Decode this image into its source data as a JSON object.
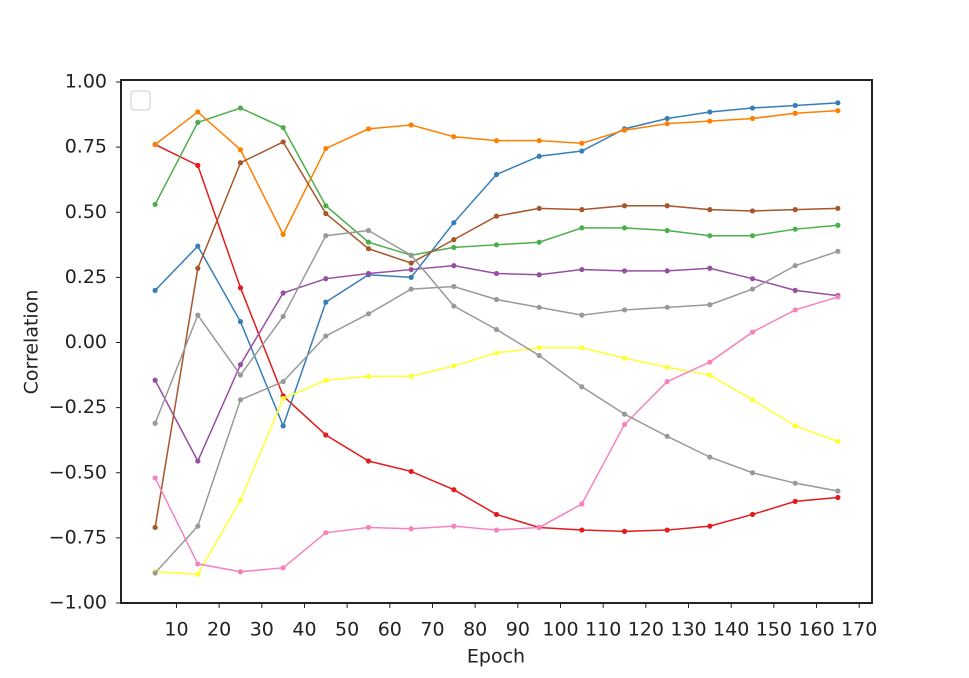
{
  "chart_data": {
    "type": "line",
    "x_label": "Epoch",
    "y_label": "Correlation",
    "x": [
      5,
      15,
      25,
      35,
      45,
      55,
      65,
      75,
      85,
      95,
      105,
      115,
      125,
      135,
      145,
      155,
      165
    ],
    "xlim": [
      -3,
      173
    ],
    "xticks": [
      10,
      20,
      30,
      40,
      50,
      60,
      70,
      80,
      90,
      100,
      110,
      120,
      130,
      140,
      150,
      160,
      170
    ],
    "ylim": [
      -1,
      1
    ],
    "yticks": [
      {
        "value": -1,
        "label": "−1.00"
      },
      {
        "value": -0.75,
        "label": "−0.75"
      },
      {
        "value": -0.5,
        "label": "−0.50"
      },
      {
        "value": -0.25,
        "label": "−0.25"
      },
      {
        "value": 0,
        "label": "0.00"
      },
      {
        "value": 0.25,
        "label": "0.25"
      },
      {
        "value": 0.5,
        "label": "0.50"
      },
      {
        "value": 0.75,
        "label": "0.75"
      },
      {
        "value": 1,
        "label": "1.00"
      }
    ],
    "grid": false,
    "series": [
      {
        "color": "#e41a1c",
        "values": [
          0.76,
          0.68,
          0.21,
          -0.205,
          -0.355,
          -0.455,
          -0.495,
          -0.565,
          -0.66,
          -0.71,
          -0.72,
          -0.725,
          -0.72,
          -0.705,
          -0.66,
          -0.61,
          -0.595
        ]
      },
      {
        "color": "#377eb8",
        "values": [
          0.2,
          0.37,
          0.08,
          -0.32,
          0.155,
          0.26,
          0.25,
          0.46,
          0.645,
          0.715,
          0.735,
          0.82,
          0.86,
          0.885,
          0.9,
          0.91,
          0.92
        ]
      },
      {
        "color": "#4daf4a",
        "values": [
          0.53,
          0.845,
          0.9,
          0.825,
          0.525,
          0.385,
          0.335,
          0.365,
          0.375,
          0.385,
          0.44,
          0.44,
          0.43,
          0.41,
          0.41,
          0.435,
          0.45
        ]
      },
      {
        "color": "#984ea3",
        "values": [
          -0.145,
          -0.455,
          -0.085,
          0.19,
          0.245,
          0.265,
          0.28,
          0.295,
          0.265,
          0.26,
          0.28,
          0.275,
          0.275,
          0.285,
          0.245,
          0.2,
          0.18
        ]
      },
      {
        "color": "#ff7f00",
        "values": [
          0.76,
          0.885,
          0.74,
          0.415,
          0.745,
          0.82,
          0.835,
          0.79,
          0.775,
          0.775,
          0.765,
          0.815,
          0.84,
          0.85,
          0.86,
          0.88,
          0.89
        ]
      },
      {
        "color": "#ffff33",
        "values": [
          -0.88,
          -0.89,
          -0.605,
          -0.215,
          -0.145,
          -0.13,
          -0.13,
          -0.09,
          -0.04,
          -0.02,
          -0.02,
          -0.06,
          -0.095,
          -0.125,
          -0.22,
          -0.32,
          -0.38
        ]
      },
      {
        "color": "#a65628",
        "values": [
          -0.71,
          0.285,
          0.69,
          0.77,
          0.495,
          0.36,
          0.305,
          0.395,
          0.485,
          0.515,
          0.51,
          0.525,
          0.525,
          0.51,
          0.505,
          0.51,
          0.515
        ]
      },
      {
        "color": "#f781bf",
        "values": [
          -0.52,
          -0.85,
          -0.88,
          -0.865,
          -0.73,
          -0.71,
          -0.715,
          -0.705,
          -0.72,
          -0.71,
          -0.62,
          -0.315,
          -0.15,
          -0.075,
          0.04,
          0.125,
          0.175
        ]
      },
      {
        "color": "#999999",
        "values": [
          -0.31,
          0.105,
          -0.125,
          0.1,
          0.41,
          0.43,
          0.335,
          0.14,
          0.05,
          -0.05,
          -0.17,
          -0.275,
          -0.36,
          -0.44,
          -0.5,
          -0.54,
          -0.57
        ]
      },
      {
        "color": "#999999",
        "values": [
          -0.885,
          -0.705,
          -0.22,
          -0.15,
          0.025,
          0.11,
          0.205,
          0.215,
          0.165,
          0.135,
          0.105,
          0.125,
          0.135,
          0.145,
          0.205,
          0.295,
          0.35
        ]
      }
    ]
  }
}
